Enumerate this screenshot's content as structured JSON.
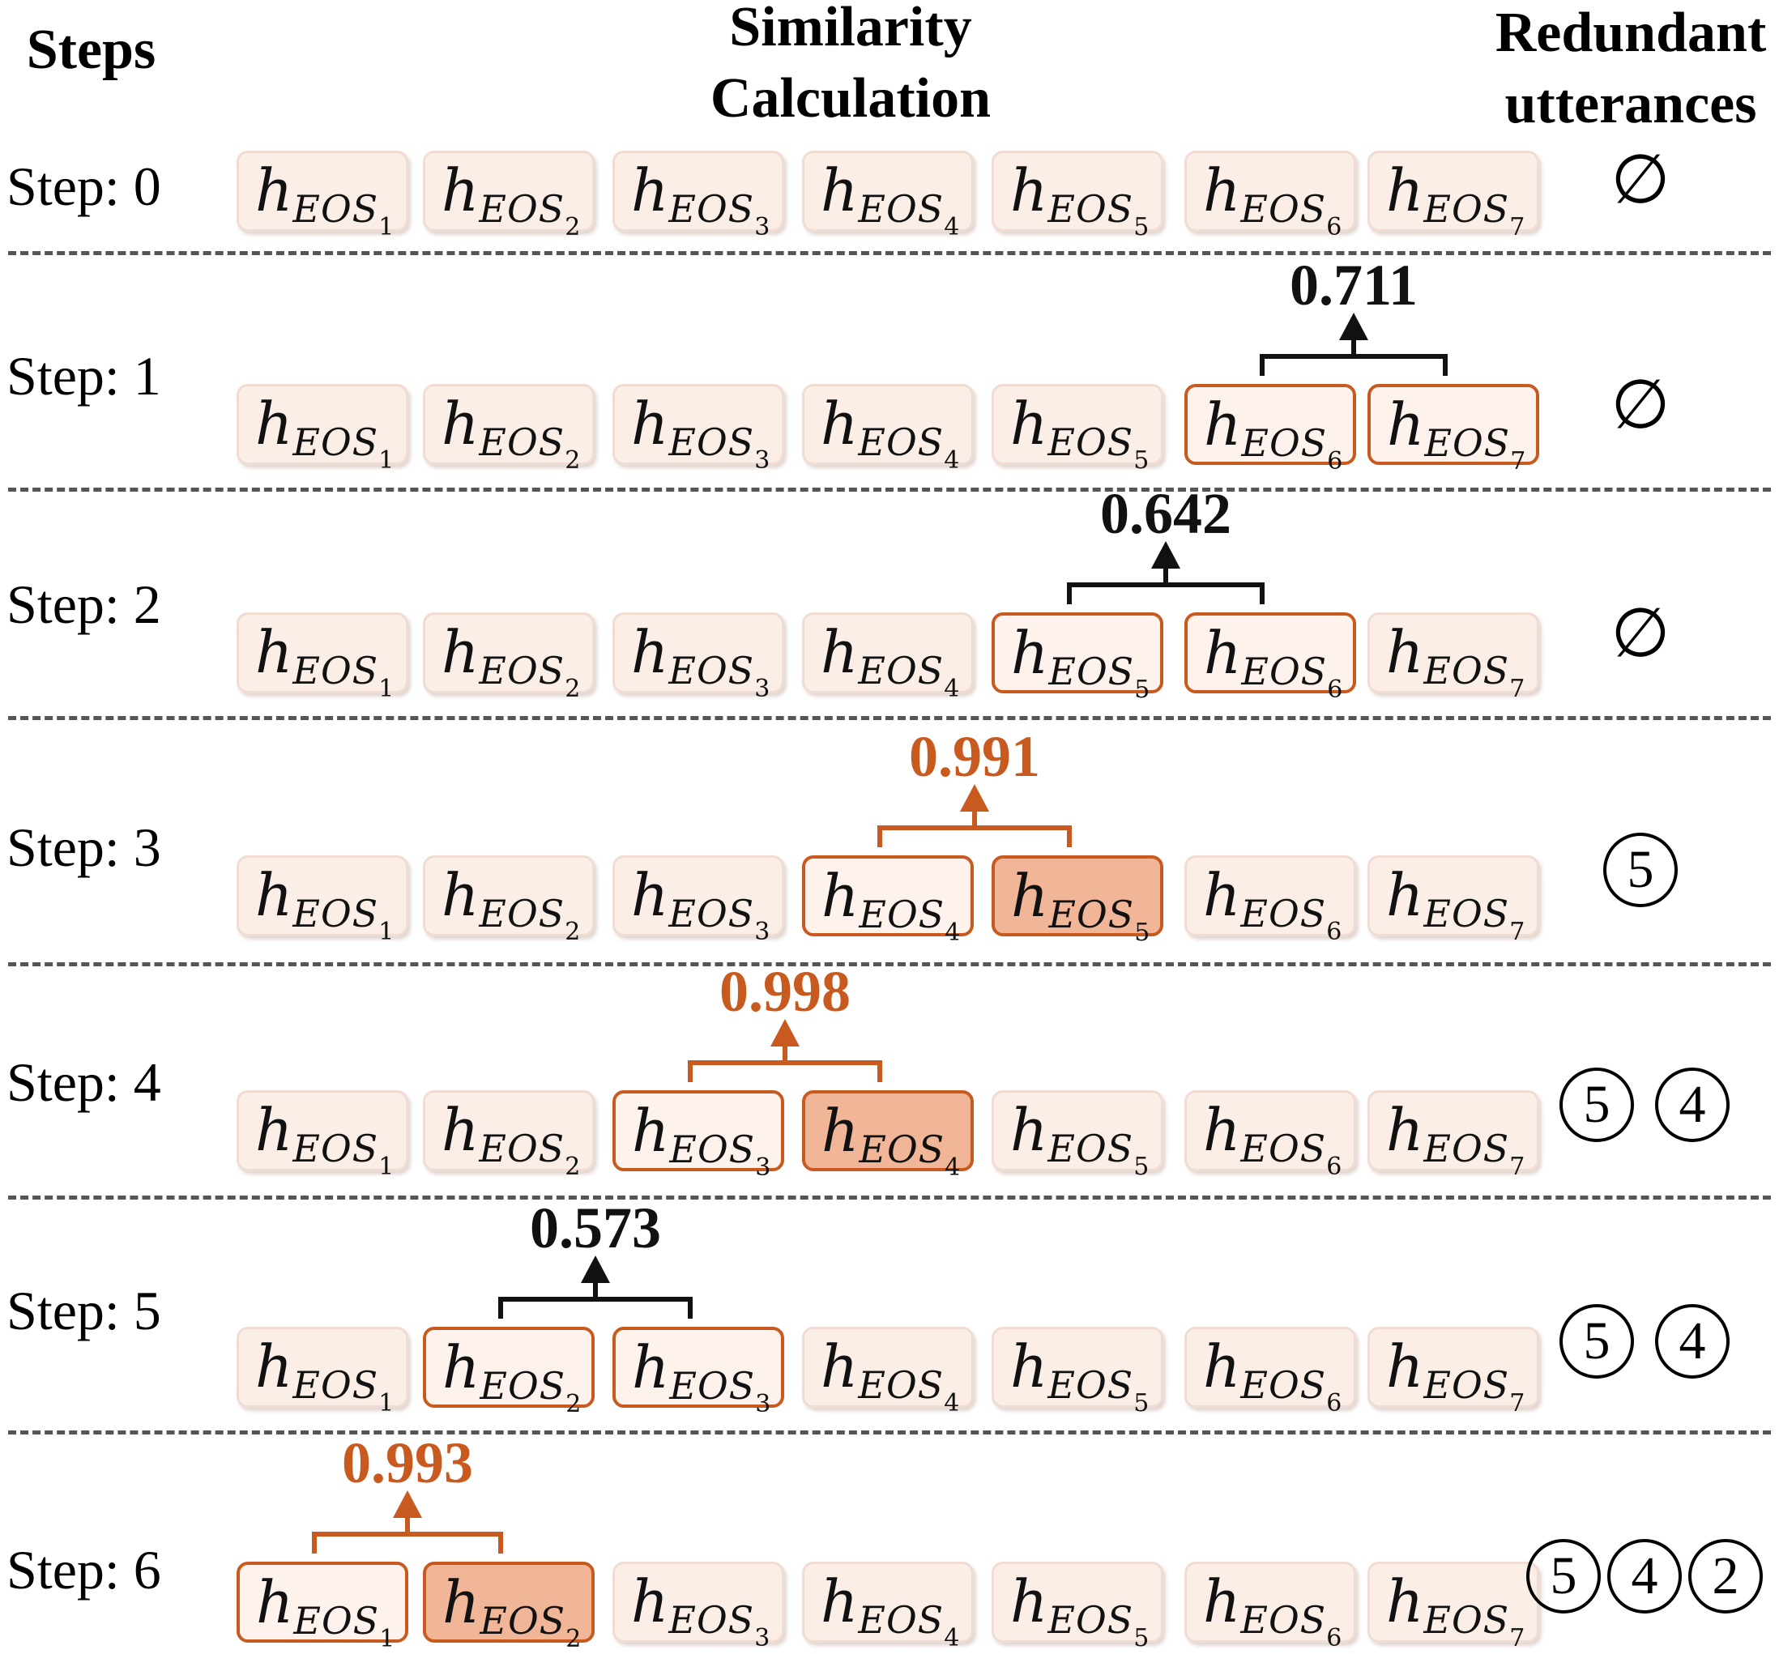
{
  "headers": {
    "steps": "Steps",
    "similarity": [
      "Similarity",
      "Calculation"
    ],
    "redundant": [
      "Redundant",
      "utterances"
    ]
  },
  "token": {
    "base": "h",
    "sub": "EOS"
  },
  "empty_set_symbol": "∅",
  "colors": {
    "highlight": "#c85a20",
    "redundant_fill": "#f0b697",
    "box_fill": "#fbeee7"
  },
  "steps": [
    {
      "label": "Step: 0",
      "compare": null,
      "redundant_token": null,
      "redundant_list": []
    },
    {
      "label": "Step: 1",
      "compare": [
        6,
        7
      ],
      "score": "0.711",
      "is_redundant": false,
      "redundant_token": null,
      "redundant_list": []
    },
    {
      "label": "Step: 2",
      "compare": [
        5,
        6
      ],
      "score": "0.642",
      "is_redundant": false,
      "redundant_token": null,
      "redundant_list": []
    },
    {
      "label": "Step: 3",
      "compare": [
        4,
        5
      ],
      "score": "0.991",
      "is_redundant": true,
      "redundant_token": 5,
      "redundant_list": [
        "5"
      ]
    },
    {
      "label": "Step: 4",
      "compare": [
        3,
        4
      ],
      "score": "0.998",
      "is_redundant": true,
      "redundant_token": 4,
      "redundant_list": [
        "5",
        "4"
      ]
    },
    {
      "label": "Step: 5",
      "compare": [
        2,
        3
      ],
      "score": "0.573",
      "is_redundant": false,
      "redundant_token": null,
      "redundant_list": [
        "5",
        "4"
      ]
    },
    {
      "label": "Step: 6",
      "compare": [
        1,
        2
      ],
      "score": "0.993",
      "is_redundant": true,
      "redundant_token": 2,
      "redundant_list": [
        "5",
        "4",
        "2"
      ]
    }
  ],
  "tokens": [
    1,
    2,
    3,
    4,
    5,
    6,
    7
  ]
}
